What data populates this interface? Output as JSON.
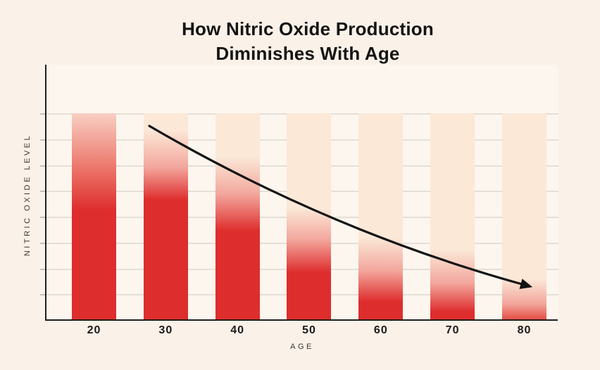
{
  "title": {
    "line1": "How Nitric Oxide Production",
    "line2": "Diminishes With Age"
  },
  "legend": {
    "label": "Nitric Oxide Level",
    "swatch_color": "#DE2D2D"
  },
  "chart_data": {
    "type": "bar",
    "title": "How Nitric Oxide Production Diminishes With Age",
    "categories": [
      "20",
      "30",
      "40",
      "50",
      "60",
      "70",
      "80"
    ],
    "series": [
      {
        "name": "Nitric Oxide Level",
        "values": [
          76,
          72,
          61,
          39,
          25,
          16,
          7
        ]
      }
    ],
    "values_note": "y-axis has no numeric ticks; values are estimated relative levels (0-100) implied by the red fill height of each gradient bar",
    "xlabel": "AGE",
    "ylabel": "NITRIC OXIDE LEVEL",
    "ylim": [
      0,
      100
    ],
    "grid": true,
    "legend_position": "top-center",
    "annotations": [
      "black curved arrow sweeping down from above age 30 to age 80 indicating declining trend"
    ]
  },
  "bars": [
    {
      "label": "20",
      "stops": [
        [
          "#F8CFC3",
          0
        ],
        [
          "#ED7B6F",
          25
        ],
        [
          "#DE2D2D",
          47
        ]
      ]
    },
    {
      "label": "30",
      "stops": [
        [
          "#FBE8D7",
          8
        ],
        [
          "#F3A79D",
          26
        ],
        [
          "#DE2D2D",
          42
        ]
      ]
    },
    {
      "label": "40",
      "stops": [
        [
          "#FBE8D7",
          21
        ],
        [
          "#F3A79D",
          39
        ],
        [
          "#DE2D2D",
          57
        ]
      ]
    },
    {
      "label": "50",
      "stops": [
        [
          "#FBE8D7",
          46
        ],
        [
          "#F3A79D",
          61
        ],
        [
          "#DE2D2D",
          77
        ]
      ]
    },
    {
      "label": "60",
      "stops": [
        [
          "#FBE8D7",
          60
        ],
        [
          "#F3A79D",
          76
        ],
        [
          "#DE2D2D",
          91
        ]
      ]
    },
    {
      "label": "70",
      "stops": [
        [
          "#FBE8D7",
          66
        ],
        [
          "#F3A79D",
          82
        ],
        [
          "#DE2D2D",
          96
        ]
      ]
    },
    {
      "label": "80",
      "stops": [
        [
          "#FBE8D7",
          80
        ],
        [
          "#F3A79D",
          92
        ],
        [
          "#E24B43",
          100
        ]
      ]
    }
  ],
  "colors": {
    "page_bg": "#FAF1E8",
    "plot_bg": "#FCF6EF",
    "bar_red": "#DE2D2D",
    "bar_cream": "#FBE8D7",
    "bar_pink": "#F3A79D",
    "grid": "#E4DFD7",
    "axis": "#221E19",
    "text": "#141414",
    "arrow": "#131313"
  }
}
